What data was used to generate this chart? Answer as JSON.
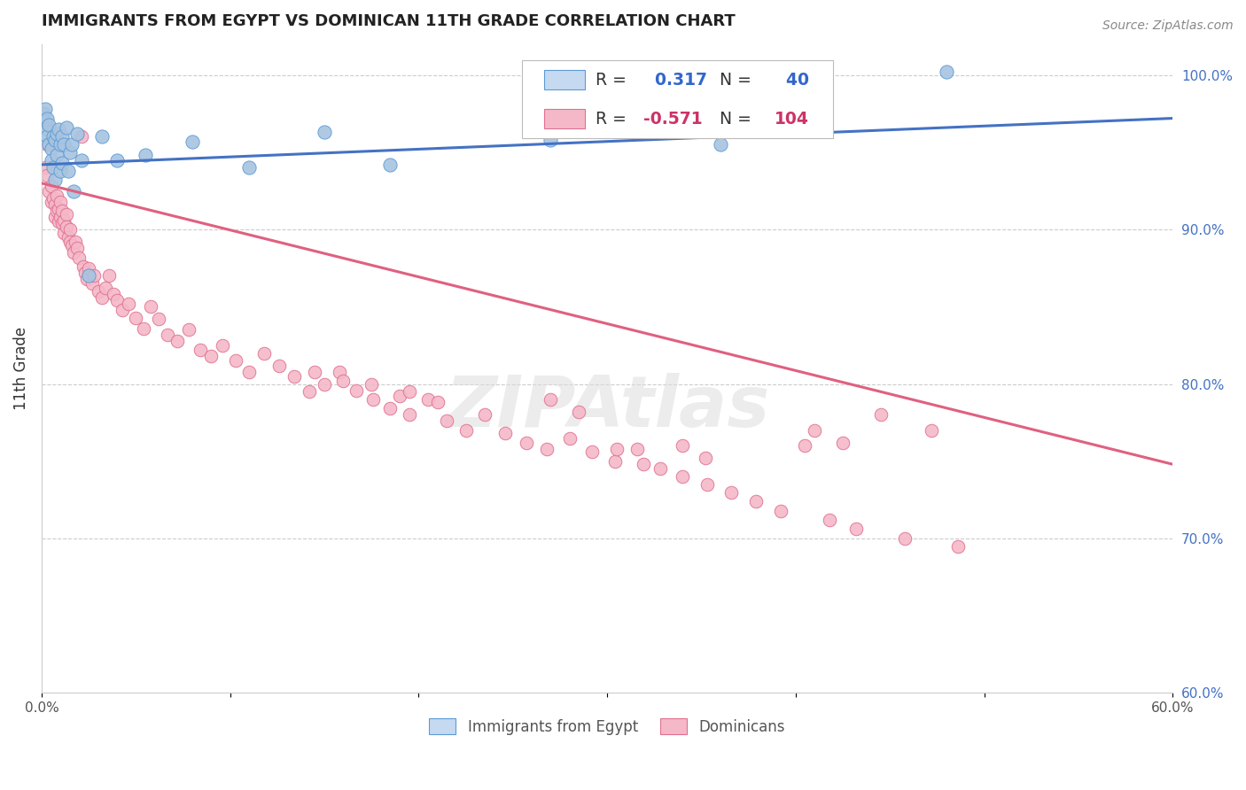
{
  "title": "IMMIGRANTS FROM EGYPT VS DOMINICAN 11TH GRADE CORRELATION CHART",
  "source": "Source: ZipAtlas.com",
  "ylabel": "11th Grade",
  "xlim": [
    0.0,
    0.6
  ],
  "ylim": [
    0.6,
    1.02
  ],
  "xticks": [
    0.0,
    0.1,
    0.2,
    0.3,
    0.4,
    0.5,
    0.6
  ],
  "xticklabels": [
    "0.0%",
    "",
    "",
    "",
    "",
    "",
    "60.0%"
  ],
  "yticks_right": [
    0.6,
    0.7,
    0.8,
    0.9,
    1.0
  ],
  "ytick_right_labels": [
    "60.0%",
    "70.0%",
    "80.0%",
    "90.0%",
    "100.0%"
  ],
  "egypt_R": 0.317,
  "egypt_N": 40,
  "dominican_R": -0.571,
  "dominican_N": 104,
  "egypt_color": "#a8c4e0",
  "egypt_edge_color": "#5b9bd5",
  "dominican_color": "#f4b8c8",
  "dominican_edge_color": "#e07090",
  "egypt_line_color": "#4472c4",
  "dominican_line_color": "#e06080",
  "legend_box_color_egypt": "#c5d9f1",
  "legend_box_color_dominican": "#f4b8c8",
  "egypt_scatter_x": [
    0.001,
    0.002,
    0.002,
    0.003,
    0.003,
    0.003,
    0.004,
    0.004,
    0.005,
    0.005,
    0.006,
    0.006,
    0.007,
    0.007,
    0.008,
    0.008,
    0.009,
    0.01,
    0.01,
    0.011,
    0.011,
    0.012,
    0.013,
    0.014,
    0.015,
    0.016,
    0.017,
    0.019,
    0.021,
    0.025,
    0.032,
    0.04,
    0.055,
    0.08,
    0.11,
    0.15,
    0.185,
    0.27,
    0.36,
    0.48
  ],
  "egypt_scatter_y": [
    0.975,
    0.978,
    0.97,
    0.965,
    0.96,
    0.972,
    0.955,
    0.968,
    0.952,
    0.945,
    0.96,
    0.94,
    0.958,
    0.932,
    0.962,
    0.948,
    0.965,
    0.938,
    0.955,
    0.943,
    0.96,
    0.955,
    0.966,
    0.938,
    0.95,
    0.955,
    0.925,
    0.962,
    0.945,
    0.87,
    0.96,
    0.945,
    0.948,
    0.957,
    0.94,
    0.963,
    0.942,
    0.958,
    0.955,
    1.002
  ],
  "egypt_line_x": [
    0.0,
    0.6
  ],
  "egypt_line_y": [
    0.942,
    0.972
  ],
  "dominican_line_x": [
    0.0,
    0.6
  ],
  "dominican_line_y": [
    0.93,
    0.748
  ],
  "dom_scatter_x": [
    0.002,
    0.003,
    0.003,
    0.004,
    0.005,
    0.005,
    0.006,
    0.007,
    0.007,
    0.008,
    0.008,
    0.009,
    0.009,
    0.01,
    0.01,
    0.011,
    0.011,
    0.012,
    0.012,
    0.013,
    0.013,
    0.014,
    0.015,
    0.015,
    0.016,
    0.017,
    0.018,
    0.019,
    0.02,
    0.021,
    0.022,
    0.023,
    0.024,
    0.025,
    0.027,
    0.028,
    0.03,
    0.032,
    0.034,
    0.036,
    0.038,
    0.04,
    0.043,
    0.046,
    0.05,
    0.054,
    0.058,
    0.062,
    0.067,
    0.072,
    0.078,
    0.084,
    0.09,
    0.096,
    0.103,
    0.11,
    0.118,
    0.126,
    0.134,
    0.142,
    0.15,
    0.158,
    0.167,
    0.176,
    0.185,
    0.195,
    0.205,
    0.215,
    0.225,
    0.235,
    0.246,
    0.257,
    0.268,
    0.28,
    0.292,
    0.304,
    0.316,
    0.328,
    0.34,
    0.353,
    0.366,
    0.379,
    0.392,
    0.405,
    0.418,
    0.432,
    0.445,
    0.458,
    0.472,
    0.486,
    0.34,
    0.352,
    0.41,
    0.425,
    0.305,
    0.319,
    0.27,
    0.285,
    0.175,
    0.19,
    0.195,
    0.21,
    0.16,
    0.145
  ],
  "dom_scatter_y": [
    0.94,
    0.935,
    0.955,
    0.925,
    0.928,
    0.918,
    0.92,
    0.916,
    0.908,
    0.912,
    0.922,
    0.913,
    0.905,
    0.908,
    0.918,
    0.904,
    0.912,
    0.906,
    0.898,
    0.91,
    0.902,
    0.895,
    0.9,
    0.892,
    0.89,
    0.885,
    0.892,
    0.888,
    0.882,
    0.96,
    0.876,
    0.872,
    0.868,
    0.875,
    0.865,
    0.87,
    0.86,
    0.856,
    0.862,
    0.87,
    0.858,
    0.854,
    0.848,
    0.852,
    0.843,
    0.836,
    0.85,
    0.842,
    0.832,
    0.828,
    0.835,
    0.822,
    0.818,
    0.825,
    0.815,
    0.808,
    0.82,
    0.812,
    0.805,
    0.795,
    0.8,
    0.808,
    0.796,
    0.79,
    0.784,
    0.78,
    0.79,
    0.776,
    0.77,
    0.78,
    0.768,
    0.762,
    0.758,
    0.765,
    0.756,
    0.75,
    0.758,
    0.745,
    0.74,
    0.735,
    0.73,
    0.724,
    0.718,
    0.76,
    0.712,
    0.706,
    0.78,
    0.7,
    0.77,
    0.695,
    0.76,
    0.752,
    0.77,
    0.762,
    0.758,
    0.748,
    0.79,
    0.782,
    0.8,
    0.792,
    0.795,
    0.788,
    0.802,
    0.808
  ]
}
